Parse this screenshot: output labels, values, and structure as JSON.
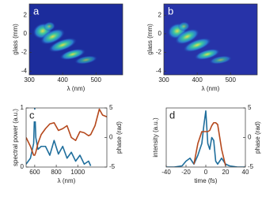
{
  "chart_data": [
    {
      "type": "heatmap",
      "label": "a",
      "xlabel": "λ (nm)",
      "ylabel": "glass (mm)",
      "xlim": [
        300,
        580
      ],
      "xticks": [
        300,
        400,
        500
      ],
      "ylim": [
        -4.4,
        3.2
      ],
      "yticks": [
        -4,
        -2,
        0,
        2
      ]
    },
    {
      "type": "heatmap",
      "label": "b",
      "xlabel": "λ (nm)",
      "ylabel": "glass (mm)",
      "xlim": [
        300,
        580
      ],
      "xticks": [
        300,
        400,
        500
      ],
      "ylim": [
        -4.4,
        3.2
      ],
      "yticks": [
        -4,
        -2,
        0,
        2
      ]
    },
    {
      "type": "line",
      "label": "c",
      "xlabel": "λ (nm)",
      "ylabel": "spectral power (a.u.)",
      "y2label": "phase (rad)",
      "xlim": [
        520,
        1270
      ],
      "xticks": [
        600,
        800,
        1000
      ],
      "ylim": [
        0,
        1
      ],
      "yticks": [
        0,
        1
      ],
      "y2lim": [
        -5,
        5
      ],
      "y2ticks": [
        -5,
        0,
        5
      ],
      "x": [
        520,
        560,
        590,
        600,
        610,
        630,
        660,
        700,
        740,
        780,
        820,
        860,
        900,
        940,
        980,
        1020,
        1060,
        1100,
        1120,
        1160,
        1200,
        1230,
        1270
      ],
      "series": [
        {
          "color": "#1f6e9c",
          "values": [
            0.05,
            0.15,
            0.4,
            1.0,
            0.5,
            0.3,
            0.35,
            0.35,
            0.2,
            0.45,
            0.22,
            0.35,
            0.15,
            0.25,
            0.1,
            0.2,
            0.05,
            0.1,
            0.02,
            null,
            null,
            null,
            null
          ]
        },
        {
          "color": "#b5481c",
          "axis": "y2",
          "values": [
            0,
            -1.5,
            -3,
            -3,
            -2.5,
            -1,
            0.5,
            1.5,
            2.3,
            2.5,
            1.2,
            1.5,
            2.0,
            0,
            -0.5,
            1,
            0.8,
            0.3,
            0.5,
            2,
            4.8,
            3.8,
            3.5
          ]
        }
      ]
    },
    {
      "type": "line",
      "label": "d",
      "xlabel": "time (fs)",
      "ylabel": "intensity (a.u.)",
      "y2label": "phase (rad)",
      "xlim": [
        -40,
        40
      ],
      "xticks": [
        -40,
        -20,
        0,
        20,
        40
      ],
      "ylim": [
        0,
        1
      ],
      "y2lim": [
        -5,
        5
      ],
      "y2ticks": [
        -5,
        0,
        5
      ],
      "x": [
        -40,
        -32,
        -24,
        -20,
        -16,
        -12,
        -8,
        -4,
        -2,
        0,
        2,
        4,
        6,
        8,
        10,
        12,
        16,
        20,
        24,
        32,
        40
      ],
      "series": [
        {
          "color": "#1f6e9c",
          "values": [
            0,
            0,
            0.02,
            0.1,
            0.15,
            0.05,
            0.2,
            0.4,
            0.7,
            0.95,
            0.4,
            0.3,
            0.5,
            0.45,
            0.1,
            0.05,
            0.15,
            0.05,
            0.02,
            0,
            0
          ]
        },
        {
          "color": "#b5481c",
          "axis": "y2",
          "values": [
            null,
            null,
            null,
            null,
            null,
            -4.5,
            -1,
            1,
            1,
            1,
            1,
            1.2,
            2,
            2.5,
            2.5,
            2.2,
            -2,
            -4.8,
            null,
            null,
            null
          ]
        }
      ]
    }
  ]
}
